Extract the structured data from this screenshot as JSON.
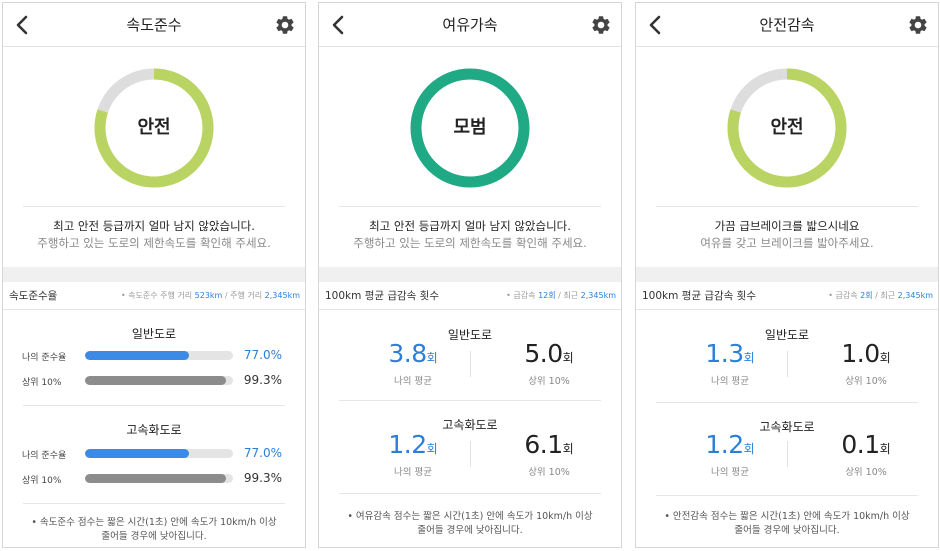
{
  "colors": {
    "safe_ring": "#b9d462",
    "model_ring": "#1fa985",
    "ring_track": "#dddddd",
    "blue": "#2a7fd9",
    "gray_bar": "#8c8c8c"
  },
  "icons": {
    "back": "chevron-left-icon",
    "settings": "gear-icon"
  },
  "panels": [
    {
      "title": "속도준수",
      "grade": "안전",
      "grade_progress": 0.8,
      "message": "최고 안전 등급까지 얼마 남지 않았습니다.",
      "sub_message": "주행하고 있는 도로의 제한속도를 확인해 주세요.",
      "stat_title": "속도준수율",
      "stat_meta": {
        "prefix": "• 속도준수 주행 거리",
        "value1": "523km",
        "sep": " / 주행 거리",
        "value2": "2,345km"
      },
      "sections": [
        {
          "title": "일반도로",
          "rows": [
            {
              "label": "나의 준수율",
              "value": "77.0%",
              "level": 0.7
            },
            {
              "label": "상위 10%",
              "value": "99.3%",
              "level": 0.95
            }
          ]
        },
        {
          "title": "고속화도로",
          "rows": [
            {
              "label": "나의 준수율",
              "value": "77.0%",
              "level": 0.7
            },
            {
              "label": "상위 10%",
              "value": "99.3%",
              "level": 0.95
            }
          ]
        }
      ],
      "footnote1": "• 속도준수 점수는 짧은 시간(1초) 안에 속도가 10km/h 이상",
      "footnote2": "줄어들 경우에 낮아집니다."
    },
    {
      "title": "여유가속",
      "grade": "모범",
      "grade_progress": 1.0,
      "message": "최고 안전 등급까지 얼마 남지 않았습니다.",
      "sub_message": "주행하고 있는 도로의 제한속도를 확인해 주세요.",
      "stat_title": "100km 평균 급감속 횟수",
      "stat_meta": {
        "prefix": "• 급감속",
        "value1": "12회",
        "sep": " / 최근",
        "value2": "2,345km"
      },
      "sections": [
        {
          "title": "일반도로",
          "mine": {
            "value": "3.8",
            "unit": "회",
            "label": "나의 평균"
          },
          "top": {
            "value": "5.0",
            "unit": "회",
            "label": "상위 10%"
          }
        },
        {
          "title": "고속화도로",
          "mine": {
            "value": "1.2",
            "unit": "회",
            "label": "나의 평균"
          },
          "top": {
            "value": "6.1",
            "unit": "회",
            "label": "상위 10%"
          }
        }
      ],
      "footnote1": "• 여유감속 점수는 짧은 시간(1초) 안에 속도가 10km/h 이상",
      "footnote2": "줄어들 경우에 낮아집니다."
    },
    {
      "title": "안전감속",
      "grade": "안전",
      "grade_progress": 0.8,
      "message": "가끔 급브레이크를 밟으시네요",
      "sub_message": "여유를 갖고 브레이크를 밟아주세요.",
      "stat_title": "100km 평균 급감속 횟수",
      "stat_meta": {
        "prefix": "• 급감속",
        "value1": "2회",
        "sep": " / 최근",
        "value2": "2,345km"
      },
      "sections": [
        {
          "title": "일반도로",
          "mine": {
            "value": "1.3",
            "unit": "회",
            "label": "나의 평균"
          },
          "top": {
            "value": "1.0",
            "unit": "회",
            "label": "상위 10%"
          }
        },
        {
          "title": "고속화도로",
          "mine": {
            "value": "1.2",
            "unit": "회",
            "label": "나의 평균"
          },
          "top": {
            "value": "0.1",
            "unit": "회",
            "label": "상위 10%"
          }
        }
      ],
      "footnote1": "• 안전감속 점수는 짧은 시간(1초) 안에 속도가 10km/h 이상",
      "footnote2": "줄어들 경우에 낮아집니다."
    }
  ]
}
